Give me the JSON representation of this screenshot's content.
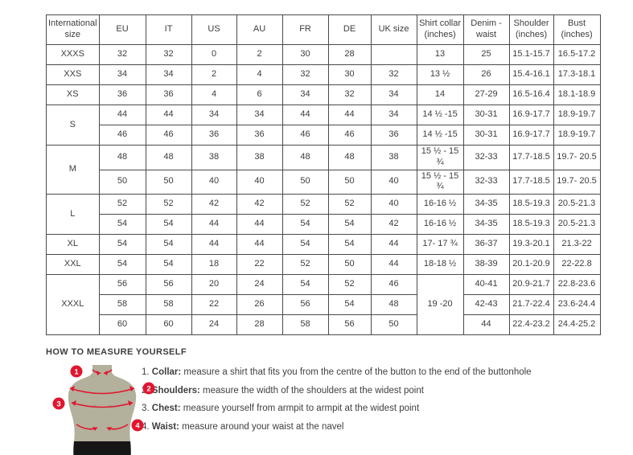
{
  "size_chart": {
    "columns": [
      "International size",
      "EU",
      "IT",
      "US",
      "AU",
      "FR",
      "DE",
      "UK size",
      "Shirt collar (inches)",
      "Denim - waist",
      "Shoulder (inches)",
      "Bust (inches)"
    ],
    "rows": [
      {
        "cells": [
          {
            "t": "XXXS"
          },
          {
            "t": "32"
          },
          {
            "t": "32"
          },
          {
            "t": "0"
          },
          {
            "t": "2"
          },
          {
            "t": "30"
          },
          {
            "t": "28"
          },
          {
            "t": ""
          },
          {
            "t": "13"
          },
          {
            "t": "25"
          },
          {
            "t": "15.1-15.7"
          },
          {
            "t": "16.5-17.2"
          }
        ]
      },
      {
        "cells": [
          {
            "t": "XXS"
          },
          {
            "t": "34"
          },
          {
            "t": "34"
          },
          {
            "t": "2"
          },
          {
            "t": "4"
          },
          {
            "t": "32"
          },
          {
            "t": "30"
          },
          {
            "t": "32"
          },
          {
            "t": "13 ½"
          },
          {
            "t": "26"
          },
          {
            "t": "15.4-16.1"
          },
          {
            "t": "17.3-18.1"
          }
        ]
      },
      {
        "cells": [
          {
            "t": "XS"
          },
          {
            "t": "36"
          },
          {
            "t": "36"
          },
          {
            "t": "4"
          },
          {
            "t": "6"
          },
          {
            "t": "34"
          },
          {
            "t": "32"
          },
          {
            "t": "34"
          },
          {
            "t": "14"
          },
          {
            "t": "27-29"
          },
          {
            "t": "16.5-16.4"
          },
          {
            "t": "18.1-18.9"
          }
        ]
      },
      {
        "cells": [
          {
            "t": "S",
            "rs": 2
          },
          {
            "t": "44"
          },
          {
            "t": "44"
          },
          {
            "t": "34"
          },
          {
            "t": "34"
          },
          {
            "t": "44"
          },
          {
            "t": "44"
          },
          {
            "t": "34"
          },
          {
            "t": "14 ½ -15"
          },
          {
            "t": "30-31"
          },
          {
            "t": "16.9-17.7"
          },
          {
            "t": "18.9-19.7"
          }
        ]
      },
      {
        "cells": [
          {
            "t": "46"
          },
          {
            "t": "46"
          },
          {
            "t": "36"
          },
          {
            "t": "36"
          },
          {
            "t": "46"
          },
          {
            "t": "46"
          },
          {
            "t": "36"
          },
          {
            "t": "14 ½ -15"
          },
          {
            "t": "30-31"
          },
          {
            "t": "16.9-17.7"
          },
          {
            "t": "18.9-19.7"
          }
        ]
      },
      {
        "cells": [
          {
            "t": "M",
            "rs": 2
          },
          {
            "t": "48"
          },
          {
            "t": "48"
          },
          {
            "t": "38"
          },
          {
            "t": "38"
          },
          {
            "t": "48"
          },
          {
            "t": "48"
          },
          {
            "t": "38"
          },
          {
            "t": "15 ½ - 15 ¾"
          },
          {
            "t": "32-33"
          },
          {
            "t": "17.7-18.5"
          },
          {
            "t": "19.7- 20.5"
          }
        ]
      },
      {
        "cells": [
          {
            "t": "50"
          },
          {
            "t": "50"
          },
          {
            "t": "40"
          },
          {
            "t": "40"
          },
          {
            "t": "50"
          },
          {
            "t": "50"
          },
          {
            "t": "40"
          },
          {
            "t": "15 ½ - 15 ¾"
          },
          {
            "t": "32-33"
          },
          {
            "t": "17.7-18.5"
          },
          {
            "t": "19.7- 20.5"
          }
        ]
      },
      {
        "cells": [
          {
            "t": "L",
            "rs": 2
          },
          {
            "t": "52"
          },
          {
            "t": "52"
          },
          {
            "t": "42"
          },
          {
            "t": "42"
          },
          {
            "t": "52"
          },
          {
            "t": "52"
          },
          {
            "t": "40"
          },
          {
            "t": "16-16 ½"
          },
          {
            "t": "34-35"
          },
          {
            "t": "18.5-19.3"
          },
          {
            "t": "20.5-21.3"
          }
        ]
      },
      {
        "cells": [
          {
            "t": "54"
          },
          {
            "t": "54"
          },
          {
            "t": "44"
          },
          {
            "t": "44"
          },
          {
            "t": "54"
          },
          {
            "t": "54"
          },
          {
            "t": "42"
          },
          {
            "t": "16-16 ½"
          },
          {
            "t": "34-35"
          },
          {
            "t": "18.5-19.3"
          },
          {
            "t": "20.5-21.3"
          }
        ]
      },
      {
        "cells": [
          {
            "t": "XL"
          },
          {
            "t": "54"
          },
          {
            "t": "54"
          },
          {
            "t": "44"
          },
          {
            "t": "44"
          },
          {
            "t": "54"
          },
          {
            "t": "54"
          },
          {
            "t": "44"
          },
          {
            "t": "17- 17 ¾"
          },
          {
            "t": "36-37"
          },
          {
            "t": "19.3-20.1"
          },
          {
            "t": "21.3-22"
          }
        ]
      },
      {
        "cells": [
          {
            "t": "XXL"
          },
          {
            "t": "54"
          },
          {
            "t": "54"
          },
          {
            "t": "18"
          },
          {
            "t": "22"
          },
          {
            "t": "52"
          },
          {
            "t": "50"
          },
          {
            "t": "44"
          },
          {
            "t": "18-18 ½"
          },
          {
            "t": "38-39"
          },
          {
            "t": "20.1-20.9"
          },
          {
            "t": "22-22.8"
          }
        ]
      },
      {
        "cells": [
          {
            "t": "XXXL",
            "rs": 3
          },
          {
            "t": "56"
          },
          {
            "t": "56"
          },
          {
            "t": "20"
          },
          {
            "t": "24"
          },
          {
            "t": "54"
          },
          {
            "t": "52"
          },
          {
            "t": "46"
          },
          {
            "t": "19 -20",
            "rs": 3
          },
          {
            "t": "40-41"
          },
          {
            "t": "20.9-21.7"
          },
          {
            "t": "22.8-23.6"
          }
        ]
      },
      {
        "cells": [
          {
            "t": "58"
          },
          {
            "t": "58"
          },
          {
            "t": "22"
          },
          {
            "t": "26"
          },
          {
            "t": "56"
          },
          {
            "t": "54"
          },
          {
            "t": "48"
          },
          {
            "t": "42-43"
          },
          {
            "t": "21.7-22.4"
          },
          {
            "t": "23.6-24.4"
          }
        ]
      },
      {
        "cells": [
          {
            "t": "60"
          },
          {
            "t": "60"
          },
          {
            "t": "24"
          },
          {
            "t": "28"
          },
          {
            "t": "58"
          },
          {
            "t": "56"
          },
          {
            "t": "50"
          },
          {
            "t": "44"
          },
          {
            "t": "22.4-23.2"
          },
          {
            "t": "24.4-25.2"
          }
        ]
      }
    ]
  },
  "measure_guide": {
    "title": "HOW TO MEASURE YOURSELF",
    "steps": [
      {
        "num": "1.",
        "term": "Collar:",
        "desc": "measure a shirt that fits you from the centre of the button to the end of the buttonhole"
      },
      {
        "num": "2.",
        "term": "Shoulders:",
        "desc": "measure the width of the shoulders at the widest point"
      },
      {
        "num": "3.",
        "term": "Chest:",
        "desc": "measure yourself from armpit to armpit at the widest point"
      },
      {
        "num": "4.",
        "term": "Waist:",
        "desc": "measure around your waist at the navel"
      }
    ],
    "figure_badges": {
      "b1": "1",
      "b2": "2",
      "b3": "3",
      "b4": "4"
    }
  },
  "colors": {
    "accent_red": "#e2152f",
    "torso": "#b3b09c",
    "shorts": "#161616",
    "table_border": "#4a4a4a",
    "text": "#3d3d3d"
  }
}
